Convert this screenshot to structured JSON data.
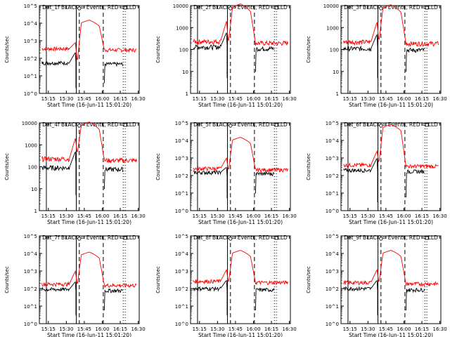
{
  "chart_data": [
    {
      "type": "line",
      "title": "Det_1f BLACK = Events, RED = LLD",
      "ylabel": "Counts/sec",
      "xlabel": "Start Time (16-Jun-11 15:01:20)",
      "y_scale": "log",
      "ytick_labels": [
        "10^5",
        "10^4",
        "10^3",
        "10^2",
        "10^1",
        "10^0"
      ],
      "yticks": [
        100000,
        10000,
        1000,
        100,
        10,
        1
      ],
      "ylim": [
        1,
        100000
      ],
      "xlim": [
        0,
        1
      ],
      "xtick_labels": [
        "15:15",
        "15:30",
        "15:45",
        "16:00",
        "16:15",
        "16:30"
      ],
      "series": [
        {
          "color": "#ff0000",
          "base": 350,
          "peak": 15000,
          "pre": 800,
          "dip": 60
        },
        {
          "color": "#000000",
          "base": 55,
          "peak": 600,
          "pre": 220,
          "dip": 2,
          "gap": [
            0.37,
            0.64
          ],
          "end": 0.84
        }
      ]
    },
    {
      "type": "line",
      "title": "Det_2f BLACK = Events, RED = LLD",
      "ylabel": "Counts/sec",
      "xlabel": "Start Time (16-Jun-11 15:01:20)",
      "y_scale": "log",
      "ytick_labels": [
        "10000",
        "1000",
        "100",
        "10",
        "1"
      ],
      "yticks": [
        10000,
        1000,
        100,
        10,
        1
      ],
      "ylim": [
        1,
        10000
      ],
      "xlim": [
        0,
        1
      ],
      "xtick_labels": [
        "15:15",
        "15:30",
        "15:45",
        "16:00",
        "16:15",
        "16:30"
      ],
      "series": [
        {
          "color": "#ff0000",
          "base": 230,
          "peak": 12000,
          "pre": 2000,
          "dip": 200
        },
        {
          "color": "#000000",
          "base": 130,
          "peak": 2000,
          "pre": 600,
          "dip": 5,
          "gap": [
            0.37,
            0.64
          ],
          "end": 0.84
        }
      ]
    },
    {
      "type": "line",
      "title": "Det_3f BLACK = Events, RED = LLD",
      "ylabel": "Counts/sec",
      "xlabel": "Start Time (16-Jun-11 15:01:20)",
      "y_scale": "log",
      "ytick_labels": [
        "10000",
        "1000",
        "100",
        "10",
        "1"
      ],
      "yticks": [
        10000,
        1000,
        100,
        10,
        1
      ],
      "ylim": [
        1,
        10000
      ],
      "xlim": [
        0,
        1
      ],
      "xtick_labels": [
        "15:15",
        "15:30",
        "15:45",
        "16:00",
        "16:15",
        "16:30"
      ],
      "series": [
        {
          "color": "#ff0000",
          "base": 220,
          "peak": 11000,
          "pre": 1800,
          "dip": 230
        },
        {
          "color": "#000000",
          "base": 110,
          "peak": 1500,
          "pre": 500,
          "dip": 5,
          "gap": [
            0.37,
            0.64
          ],
          "end": 0.84
        }
      ]
    },
    {
      "type": "line",
      "title": "Det_4f BLACK = Events, RED = LLD",
      "ylabel": "Counts/sec",
      "xlabel": "Start Time (16-Jun-11 15:01:20)",
      "y_scale": "log",
      "ytick_labels": [
        "10000",
        "1000",
        "100",
        "10",
        "1"
      ],
      "yticks": [
        10000,
        1000,
        100,
        10,
        1
      ],
      "ylim": [
        1,
        10000
      ],
      "xlim": [
        0,
        1
      ],
      "xtick_labels": [
        "15:15",
        "15:30",
        "15:45",
        "16:00",
        "16:15",
        "16:30"
      ],
      "series": [
        {
          "color": "#ff0000",
          "base": 230,
          "peak": 11000,
          "pre": 2000,
          "dip": 400
        },
        {
          "color": "#000000",
          "base": 90,
          "peak": 1500,
          "pre": 500,
          "dip": 5,
          "gap": [
            0.37,
            0.64
          ],
          "end": 0.84
        }
      ]
    },
    {
      "type": "line",
      "title": "Det_5f BLACK = Events, RED = LLD",
      "ylabel": "Counts/sec",
      "xlabel": "Start Time (16-Jun-11 15:01:20)",
      "y_scale": "log",
      "ytick_labels": [
        "10^5",
        "10^4",
        "10^3",
        "10^2",
        "10^1",
        "10^0"
      ],
      "yticks": [
        100000,
        10000,
        1000,
        100,
        10,
        1
      ],
      "ylim": [
        1,
        100000
      ],
      "xlim": [
        0,
        1
      ],
      "xtick_labels": [
        "15:15",
        "15:30",
        "15:45",
        "16:00",
        "16:15",
        "16:30"
      ],
      "series": [
        {
          "color": "#ff0000",
          "base": 250,
          "peak": 15000,
          "pre": 1000,
          "dip": 180
        },
        {
          "color": "#000000",
          "base": 150,
          "peak": 800,
          "pre": 300,
          "dip": 5,
          "gap": [
            0.37,
            0.64
          ],
          "end": 0.84
        }
      ]
    },
    {
      "type": "line",
      "title": "Det_6f BLACK = Events, RED = LLD",
      "ylabel": "Counts/sec",
      "xlabel": "Start Time (16-Jun-11 15:01:20)",
      "y_scale": "log",
      "ytick_labels": [
        "10^5",
        "10^4",
        "10^3",
        "10^2",
        "10^1",
        "10^0"
      ],
      "yticks": [
        100000,
        10000,
        1000,
        100,
        10,
        1
      ],
      "ylim": [
        1,
        100000
      ],
      "xlim": [
        0,
        1
      ],
      "xtick_labels": [
        "15:15",
        "15:30",
        "15:45",
        "16:00",
        "16:15",
        "16:30"
      ],
      "series": [
        {
          "color": "#ff0000",
          "base": 400,
          "peak": 80000,
          "pre": 2500,
          "dip": 500
        },
        {
          "color": "#000000",
          "base": 200,
          "peak": 3000,
          "pre": 1000,
          "dip": 3,
          "gap": [
            0.37,
            0.64
          ],
          "end": 0.84
        }
      ]
    },
    {
      "type": "line",
      "title": "Det_7f BLACK = Events, RED = LLD",
      "ylabel": "Counts/sec",
      "xlabel": "Start Time (16-Jun-11 15:01:20)",
      "y_scale": "log",
      "ytick_labels": [
        "10^5",
        "10^4",
        "10^3",
        "10^2",
        "10^1",
        "10^0"
      ],
      "yticks": [
        100000,
        10000,
        1000,
        100,
        10,
        1
      ],
      "ylim": [
        1,
        100000
      ],
      "xlim": [
        0,
        1
      ],
      "xtick_labels": [
        "15:15",
        "15:30",
        "15:45",
        "16:00",
        "16:15",
        "16:30"
      ],
      "series": [
        {
          "color": "#ff0000",
          "base": 180,
          "peak": 12000,
          "pre": 1000,
          "dip": 150
        },
        {
          "color": "#000000",
          "base": 90,
          "peak": 800,
          "pre": 250,
          "dip": 3,
          "gap": [
            0.37,
            0.64
          ],
          "end": 0.84
        }
      ]
    },
    {
      "type": "line",
      "title": "Det_8f BLACK = Events, RED = LLD",
      "ylabel": "Counts/sec",
      "xlabel": "Start Time (16-Jun-11 15:01:20)",
      "y_scale": "log",
      "ytick_labels": [
        "10^5",
        "10^4",
        "10^3",
        "10^2",
        "10^1",
        "10^0"
      ],
      "yticks": [
        100000,
        10000,
        1000,
        100,
        10,
        1
      ],
      "ylim": [
        1,
        100000
      ],
      "xlim": [
        0,
        1
      ],
      "xtick_labels": [
        "15:15",
        "15:30",
        "15:45",
        "16:00",
        "16:15",
        "16:30"
      ],
      "series": [
        {
          "color": "#ff0000",
          "base": 260,
          "peak": 15000,
          "pre": 1200,
          "dip": 200
        },
        {
          "color": "#000000",
          "base": 100,
          "peak": 800,
          "pre": 300,
          "dip": 3,
          "gap": [
            0.37,
            0.64
          ],
          "end": 0.84
        }
      ]
    },
    {
      "type": "line",
      "title": "Det_9f BLACK = Events, RED = LLD",
      "ylabel": "Counts/sec",
      "xlabel": "Start Time (16-Jun-11 15:01:20)",
      "y_scale": "log",
      "ytick_labels": [
        "10^5",
        "10^4",
        "10^3",
        "10^2",
        "10^1",
        "10^0"
      ],
      "yticks": [
        100000,
        10000,
        1000,
        100,
        10,
        1
      ],
      "ylim": [
        1,
        100000
      ],
      "xlim": [
        0,
        1
      ],
      "xtick_labels": [
        "15:15",
        "15:30",
        "15:45",
        "16:00",
        "16:15",
        "16:30"
      ],
      "series": [
        {
          "color": "#ff0000",
          "base": 220,
          "peak": 15000,
          "pre": 1200,
          "dip": 200
        },
        {
          "color": "#000000",
          "base": 100,
          "peak": 800,
          "pre": 300,
          "dip": 3,
          "gap": [
            0.37,
            0.64
          ],
          "end": 0.84
        }
      ]
    }
  ]
}
